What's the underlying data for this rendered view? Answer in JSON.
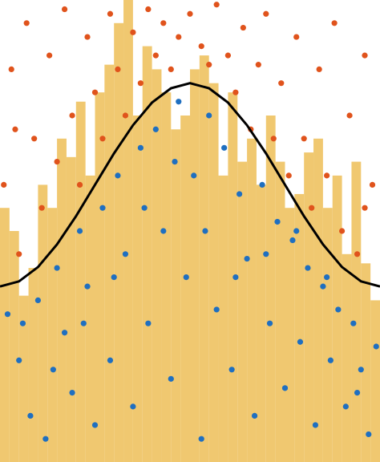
{
  "chart_data": [
    {
      "type": "histogram",
      "color": "#f0c870",
      "xlim": [
        0,
        1
      ],
      "ylim": [
        0,
        1
      ],
      "bins": [
        0,
        0.025,
        0.05,
        0.075,
        0.1,
        0.125,
        0.15,
        0.175,
        0.2,
        0.225,
        0.25,
        0.275,
        0.3,
        0.325,
        0.35,
        0.375,
        0.4,
        0.425,
        0.45,
        0.475,
        0.5,
        0.525,
        0.55,
        0.575,
        0.6,
        0.625,
        0.65,
        0.675,
        0.7,
        0.725,
        0.75,
        0.775,
        0.8,
        0.825,
        0.85,
        0.875,
        0.9,
        0.925,
        0.95,
        0.975,
        1
      ],
      "values": [
        0.55,
        0.5,
        0.36,
        0.42,
        0.6,
        0.55,
        0.7,
        0.66,
        0.78,
        0.62,
        0.8,
        0.86,
        0.95,
        1.0,
        0.75,
        0.9,
        0.85,
        0.8,
        0.72,
        0.75,
        0.85,
        0.88,
        0.82,
        0.62,
        0.8,
        0.65,
        0.7,
        0.6,
        0.75,
        0.65,
        0.55,
        0.58,
        0.67,
        0.7,
        0.55,
        0.62,
        0.45,
        0.65,
        0.43,
        0.35
      ]
    },
    {
      "type": "scatter",
      "xlim": [
        0,
        1
      ],
      "ylim": [
        0,
        1
      ],
      "series": [
        {
          "color": "#1f6fc0",
          "x": [
            0.02,
            0.05,
            0.08,
            0.1,
            0.12,
            0.15,
            0.17,
            0.19,
            0.21,
            0.23,
            0.25,
            0.27,
            0.29,
            0.31,
            0.33,
            0.35,
            0.37,
            0.39,
            0.41,
            0.43,
            0.45,
            0.47,
            0.49,
            0.51,
            0.53,
            0.55,
            0.57,
            0.59,
            0.61,
            0.63,
            0.65,
            0.67,
            0.69,
            0.71,
            0.73,
            0.75,
            0.77,
            0.79,
            0.81,
            0.83,
            0.85,
            0.87,
            0.89,
            0.91,
            0.93,
            0.95,
            0.97,
            0.99,
            0.06,
            0.14,
            0.22,
            0.3,
            0.38,
            0.46,
            0.54,
            0.62,
            0.7,
            0.78,
            0.86,
            0.94
          ],
          "values": [
            0.32,
            0.22,
            0.1,
            0.35,
            0.05,
            0.42,
            0.28,
            0.15,
            0.5,
            0.38,
            0.08,
            0.55,
            0.22,
            0.62,
            0.45,
            0.12,
            0.68,
            0.3,
            0.72,
            0.5,
            0.18,
            0.78,
            0.4,
            0.62,
            0.05,
            0.75,
            0.33,
            0.68,
            0.2,
            0.58,
            0.44,
            0.1,
            0.6,
            0.3,
            0.52,
            0.16,
            0.48,
            0.26,
            0.42,
            0.08,
            0.38,
            0.22,
            0.33,
            0.12,
            0.3,
            0.2,
            0.06,
            0.25,
            0.3,
            0.2,
            0.3,
            0.4,
            0.55,
            0.65,
            0.5,
            0.4,
            0.45,
            0.5,
            0.4,
            0.15
          ]
        },
        {
          "color": "#e0531c",
          "x": [
            0.01,
            0.03,
            0.05,
            0.07,
            0.09,
            0.11,
            0.13,
            0.15,
            0.17,
            0.19,
            0.21,
            0.23,
            0.25,
            0.27,
            0.29,
            0.31,
            0.33,
            0.35,
            0.37,
            0.39,
            0.41,
            0.43,
            0.45,
            0.47,
            0.5,
            0.53,
            0.55,
            0.57,
            0.6,
            0.62,
            0.64,
            0.66,
            0.68,
            0.7,
            0.72,
            0.74,
            0.76,
            0.78,
            0.8,
            0.82,
            0.84,
            0.86,
            0.88,
            0.9,
            0.92,
            0.94,
            0.96,
            0.98,
            0.04,
            0.96
          ],
          "values": [
            0.6,
            0.85,
            0.45,
            0.95,
            0.7,
            0.55,
            0.88,
            0.65,
            0.98,
            0.75,
            0.6,
            0.92,
            0.8,
            0.7,
            0.97,
            0.85,
            0.75,
            0.93,
            0.82,
            0.98,
            0.88,
            0.95,
            0.85,
            0.92,
            0.97,
            0.9,
            0.86,
            0.99,
            0.88,
            0.8,
            0.94,
            0.72,
            0.86,
            0.97,
            0.7,
            0.82,
            0.62,
            0.92,
            0.7,
            0.55,
            0.85,
            0.62,
            0.95,
            0.5,
            0.75,
            0.45,
            0.88,
            0.6,
            0.72,
            0.55
          ]
        }
      ]
    },
    {
      "type": "line",
      "color": "#000000",
      "xlim": [
        0,
        1
      ],
      "ylim": [
        0,
        1
      ],
      "x": [
        0,
        0.05,
        0.1,
        0.15,
        0.2,
        0.25,
        0.3,
        0.35,
        0.4,
        0.45,
        0.5,
        0.55,
        0.6,
        0.65,
        0.7,
        0.75,
        0.8,
        0.85,
        0.9,
        0.95,
        1
      ],
      "values": [
        0.38,
        0.391,
        0.422,
        0.471,
        0.532,
        0.6,
        0.668,
        0.729,
        0.778,
        0.809,
        0.82,
        0.809,
        0.778,
        0.729,
        0.668,
        0.6,
        0.532,
        0.471,
        0.422,
        0.391,
        0.38
      ]
    }
  ]
}
